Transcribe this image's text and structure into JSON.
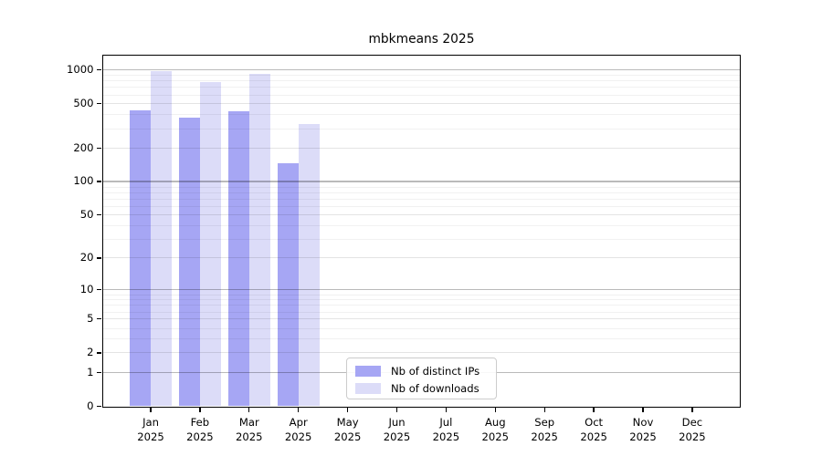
{
  "chart_data": {
    "type": "bar",
    "title": "mbkmeans 2025",
    "y_scale": "log-like: y = log10(value + 1), symlog with 0 baseline",
    "ylim": [
      0,
      1320
    ],
    "y_ticks": [
      0,
      1,
      2,
      5,
      10,
      20,
      50,
      100,
      200,
      500,
      1000
    ],
    "grid": "horizontal major + log minor gridlines",
    "legend_position": "lower center inside plot",
    "categories": [
      {
        "month": "Jan",
        "year": "2025"
      },
      {
        "month": "Feb",
        "year": "2025"
      },
      {
        "month": "Mar",
        "year": "2025"
      },
      {
        "month": "Apr",
        "year": "2025"
      },
      {
        "month": "May",
        "year": "2025"
      },
      {
        "month": "Jun",
        "year": "2025"
      },
      {
        "month": "Jul",
        "year": "2025"
      },
      {
        "month": "Aug",
        "year": "2025"
      },
      {
        "month": "Sep",
        "year": "2025"
      },
      {
        "month": "Oct",
        "year": "2025"
      },
      {
        "month": "Nov",
        "year": "2025"
      },
      {
        "month": "Dec",
        "year": "2025"
      }
    ],
    "series": [
      {
        "name": "Nb of distinct IPs",
        "color": "#a6a6f4",
        "values": [
          430,
          375,
          425,
          145,
          null,
          null,
          null,
          null,
          null,
          null,
          null,
          null
        ]
      },
      {
        "name": "Nb of downloads",
        "color": "#dcdcf8",
        "values": [
          965,
          780,
          910,
          325,
          null,
          null,
          null,
          null,
          null,
          null,
          null,
          null
        ]
      }
    ]
  }
}
